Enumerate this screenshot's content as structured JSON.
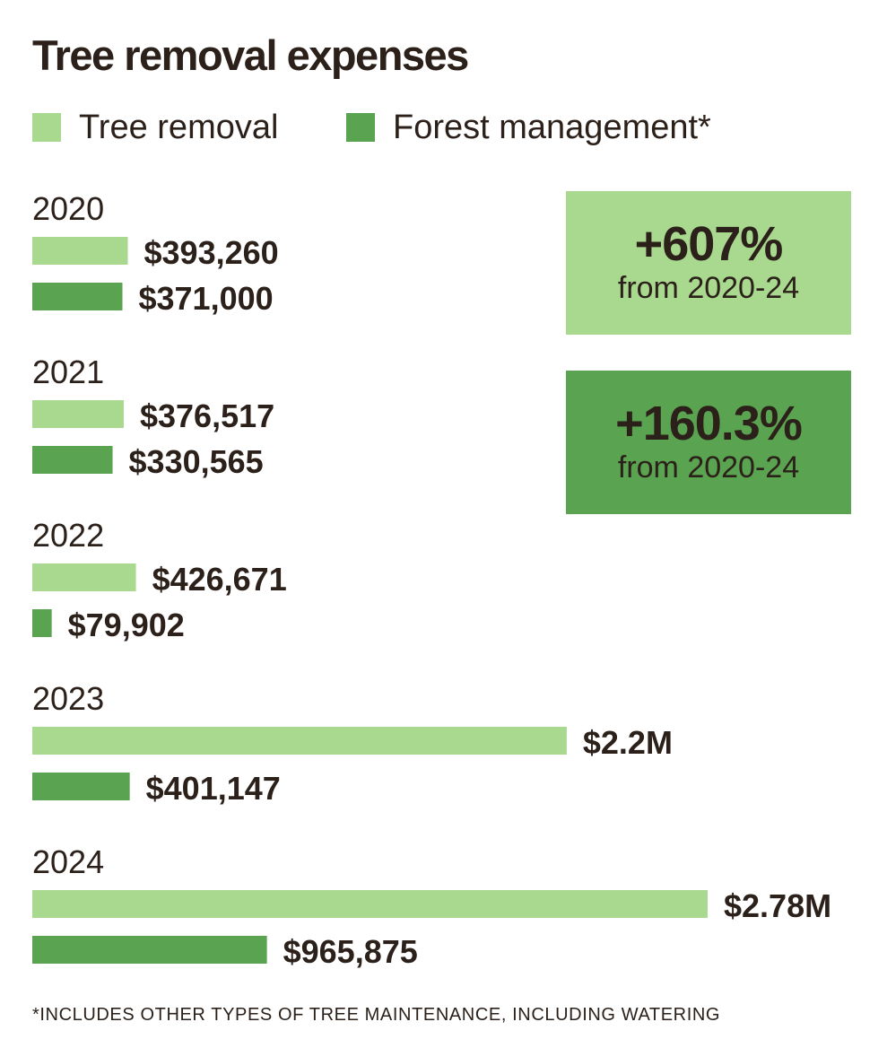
{
  "colors": {
    "tree_removal": "#a8d98f",
    "forest_management": "#5aa350",
    "text": "#2b211a"
  },
  "callouts": [
    {
      "value": "+607%",
      "sub": "from 2020-24",
      "color": "#a8d98f"
    },
    {
      "value": "+160.3%",
      "sub": "from 2020-24",
      "color": "#5aa350"
    }
  ],
  "footnote": "*INCLUDES OTHER TYPES OF TREE MAINTENANCE, INCLUDING WATERING",
  "chart_data": {
    "type": "bar",
    "orientation": "horizontal",
    "title": "Tree removal expenses",
    "legend": [
      "Tree removal",
      "Forest management*"
    ],
    "legend_position": "top-left",
    "categories": [
      "2020",
      "2021",
      "2022",
      "2023",
      "2024"
    ],
    "series": [
      {
        "name": "Tree removal",
        "values": [
          393260,
          376517,
          426671,
          2200000,
          2780000
        ],
        "labels": [
          "$393,260",
          "$376,517",
          "$426,671",
          "$2.2M",
          "$2.78M"
        ]
      },
      {
        "name": "Forest management*",
        "values": [
          371000,
          330565,
          79902,
          401147,
          965875
        ],
        "labels": [
          "$371,000",
          "$330,565",
          "$79,902",
          "$401,147",
          "$965,875"
        ]
      }
    ],
    "xlim": [
      0,
      2780000
    ],
    "grid": false,
    "axes_visible": false
  }
}
